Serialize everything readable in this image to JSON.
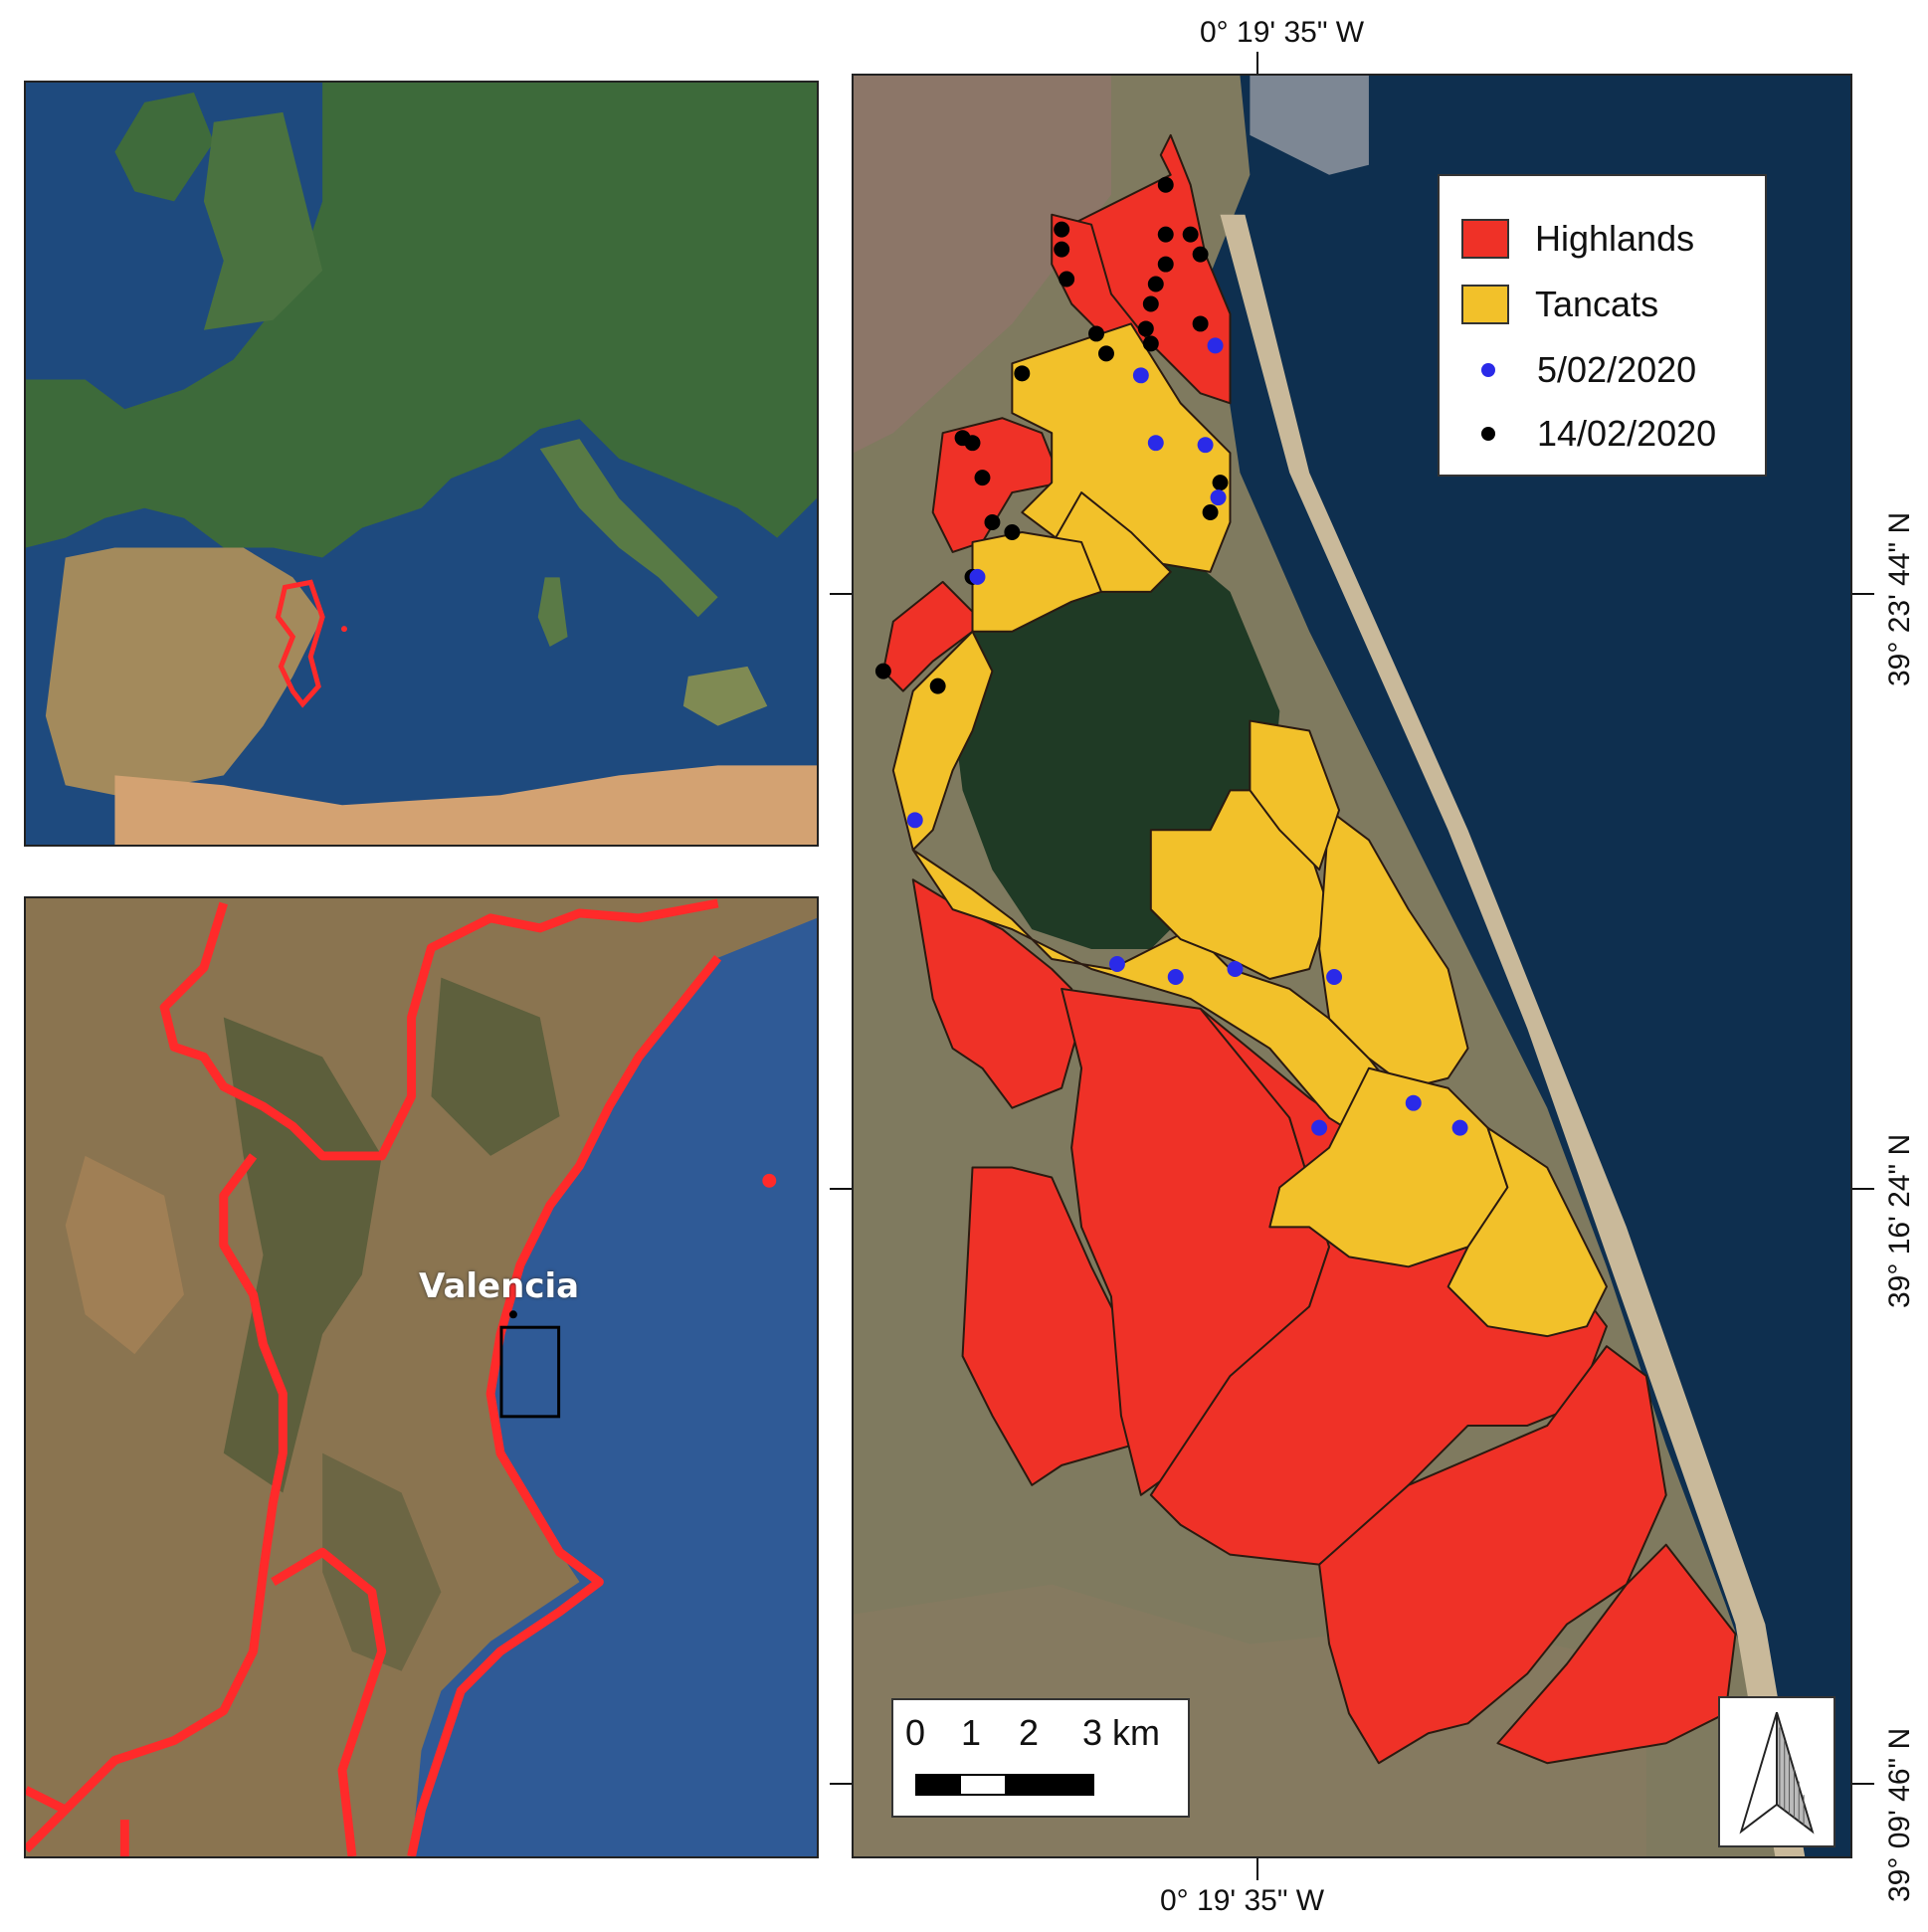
{
  "map": {
    "top_longitude": "0° 19' 35\" W",
    "bottom_longitude": "0° 19' 35\" W",
    "latitudes": [
      "39° 23' 44\" N",
      "39° 16' 24\" N",
      "39° 09' 46\" N"
    ]
  },
  "legend": {
    "items": [
      {
        "label": "Highlands",
        "kind": "swatch",
        "color": "#ef3127"
      },
      {
        "label": "Tancats",
        "kind": "swatch",
        "color": "#f2c12a"
      },
      {
        "label": "5/02/2020",
        "kind": "point",
        "color": "#2a2ae8"
      },
      {
        "label": "14/02/2020",
        "kind": "point",
        "color": "#000000"
      }
    ]
  },
  "scale_bar": {
    "labels": [
      "0",
      "1",
      "2",
      "3 km"
    ]
  },
  "inset": {
    "place_label": "Valencia"
  },
  "colors": {
    "highlands": "#ef3127",
    "tancats": "#f2c12a",
    "sea": "#17344f",
    "boundary": "#ff2a2a",
    "lagoon": "#1e3a22"
  },
  "icons": {
    "north_arrow": "north-arrow-icon"
  }
}
